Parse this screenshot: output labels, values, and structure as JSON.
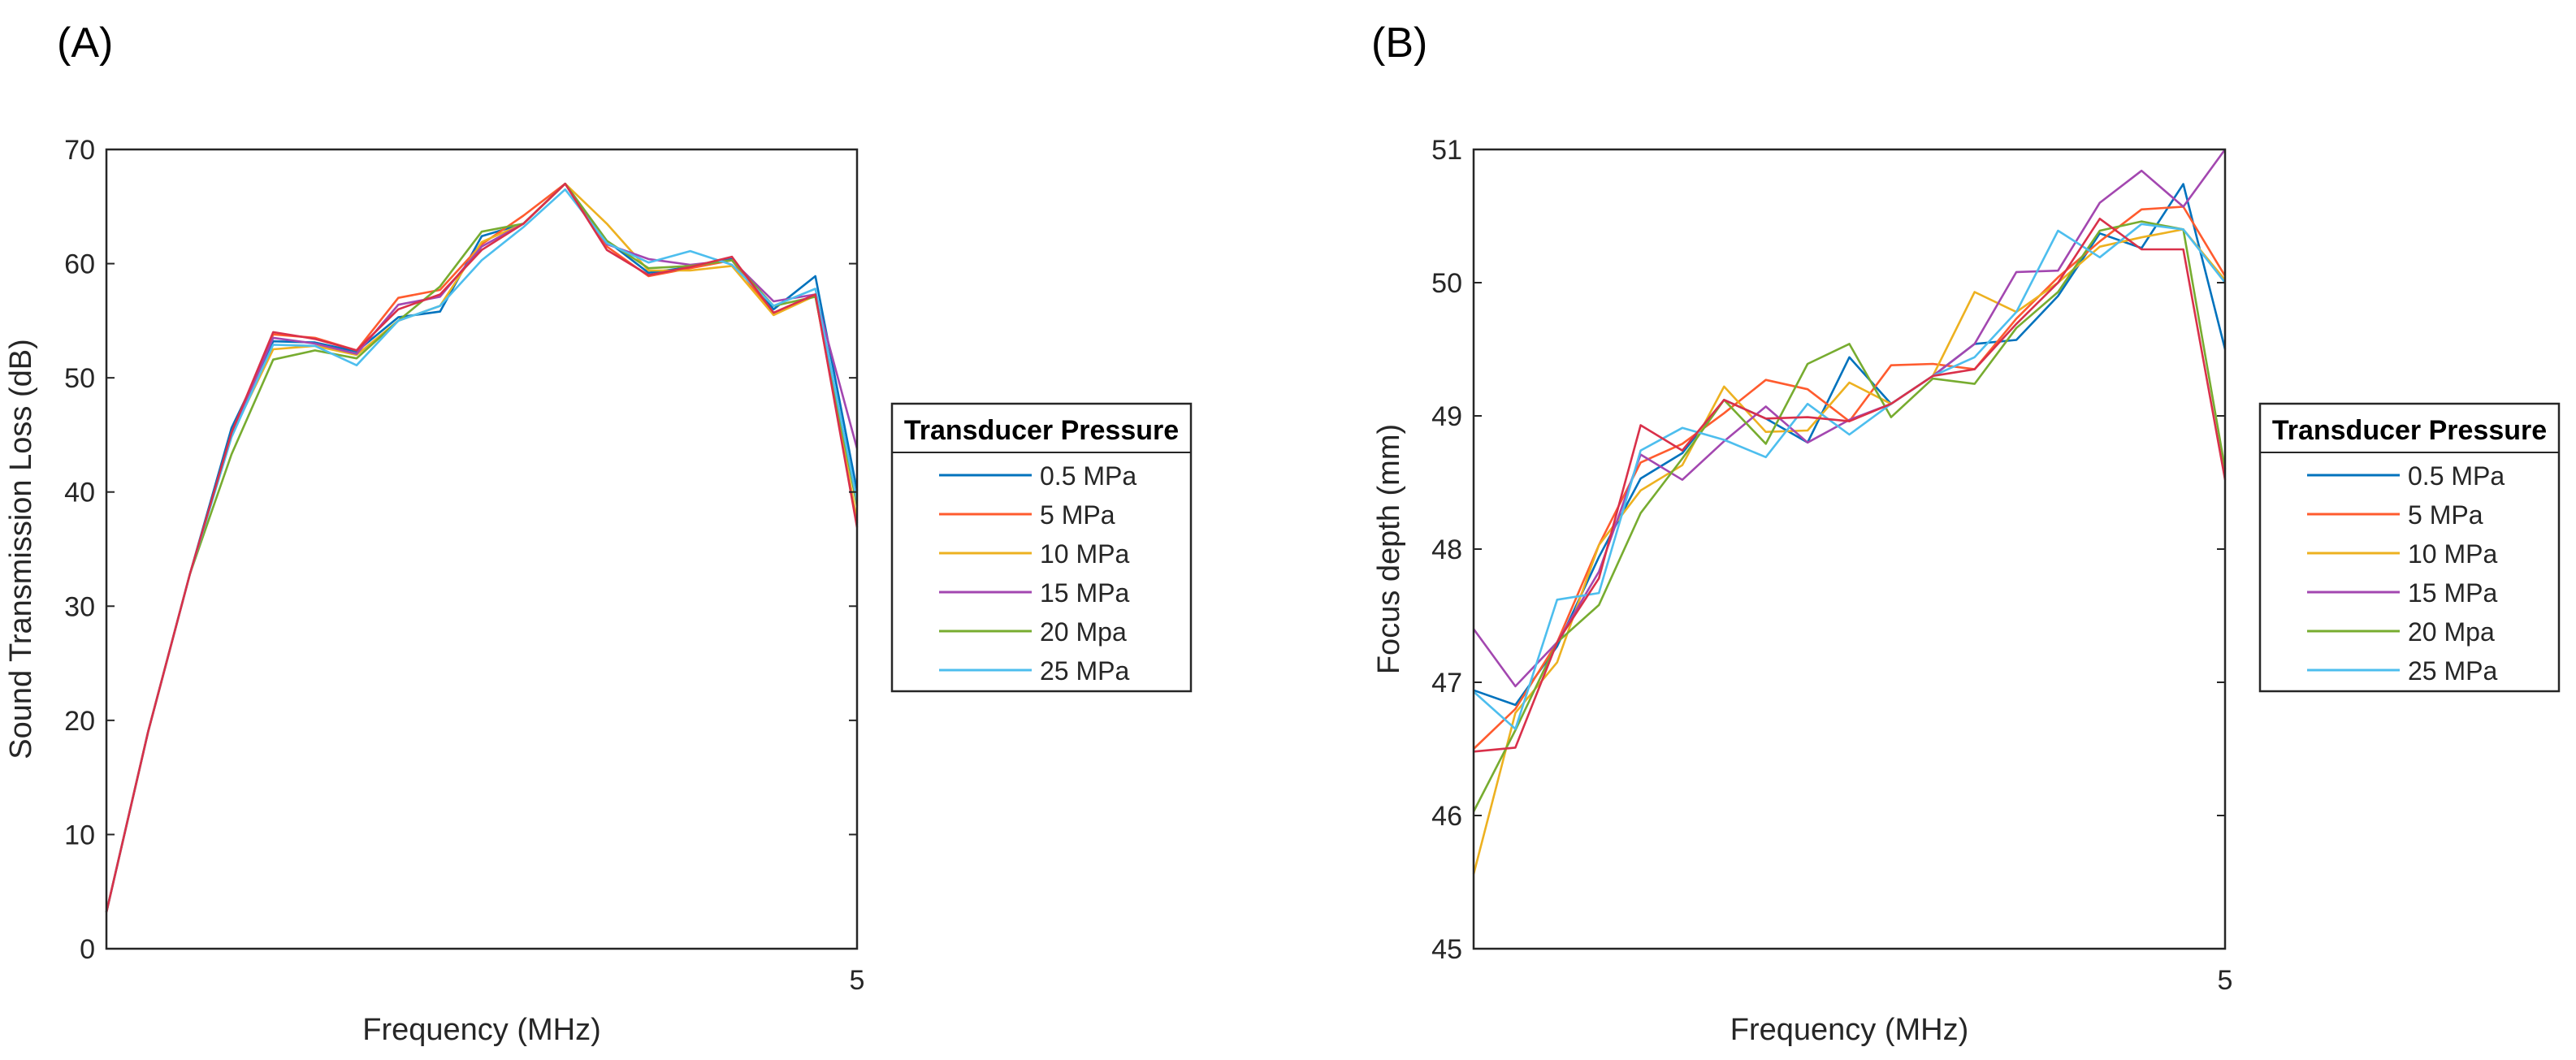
{
  "chart_data": [
    {
      "type": "line",
      "panel_label": "(A)",
      "title": "",
      "xlabel": "Frequency (MHz)",
      "ylabel": "Sound Transmission Loss (dB)",
      "xlim": [
        0.5,
        5
      ],
      "ylim": [
        0,
        70
      ],
      "xticks": [
        5
      ],
      "xtick_labels": [
        "5"
      ],
      "yticks": [
        0,
        10,
        20,
        30,
        40,
        50,
        60,
        70
      ],
      "ytick_labels": [
        "0",
        "10",
        "20",
        "30",
        "40",
        "50",
        "60",
        "70"
      ],
      "grid": false,
      "legend": {
        "title": "Transducer Pressure",
        "placement": "outside-right"
      },
      "x": [
        0.5,
        0.75,
        1,
        1.25,
        1.5,
        1.75,
        2,
        2.25,
        2.5,
        2.75,
        3,
        3.25,
        3.5,
        3.75,
        4,
        4.25,
        4.5,
        4.75,
        5
      ],
      "series": [
        {
          "name": "0.5 MPa",
          "color": "#0072BD",
          "values": [
            3.2,
            19,
            32.8,
            45.6,
            53.2,
            53.1,
            52.3,
            55.3,
            55.8,
            62.4,
            63.5,
            67,
            62,
            59.2,
            59.7,
            60.4,
            56,
            58.9,
            40.1
          ]
        },
        {
          "name": "5 MPa",
          "color": "#FF5B2E",
          "values": [
            3.2,
            19,
            32.8,
            45,
            53.8,
            53.5,
            52.4,
            57,
            57.7,
            61.7,
            64.2,
            67,
            61.5,
            58.9,
            59.6,
            60.3,
            55.5,
            57.3,
            37.3
          ]
        },
        {
          "name": "10 MPa",
          "color": "#EDB120",
          "values": [
            3.2,
            19,
            32.8,
            45,
            52.5,
            52.8,
            52,
            55,
            56.3,
            61.9,
            63.5,
            67,
            63.5,
            59.4,
            59.4,
            59.8,
            55.5,
            57.2,
            37.5
          ]
        },
        {
          "name": "15 MPa",
          "color": "#A347B0",
          "values": [
            3.2,
            19,
            32.8,
            45,
            53.5,
            53,
            52.1,
            56.4,
            57.1,
            61.5,
            63.5,
            67,
            61.7,
            60.4,
            59.9,
            60.3,
            56.7,
            57.3,
            43.8
          ]
        },
        {
          "name": "20 Mpa",
          "color": "#77AC30",
          "values": [
            3.2,
            19,
            32.8,
            43.3,
            51.6,
            52.4,
            51.7,
            55,
            58,
            62.8,
            63.5,
            67,
            62,
            59.6,
            59.8,
            60.3,
            56.3,
            57.1,
            38.8
          ]
        },
        {
          "name": "25 MPa",
          "color": "#4DBEEE",
          "values": [
            3.2,
            19,
            32.8,
            44.8,
            52.9,
            52.8,
            51.1,
            55,
            56.3,
            60.3,
            63.2,
            66.5,
            61.8,
            60.1,
            61.1,
            59.9,
            56.3,
            57.8,
            39.2
          ]
        },
        {
          "name": "",
          "color": "#D9304A",
          "values": [
            3.2,
            19,
            32.8,
            45.2,
            54,
            53.4,
            52.4,
            56,
            57.3,
            61.2,
            63.5,
            67,
            61.2,
            59,
            59.7,
            60.6,
            55.7,
            57.3,
            36.9
          ]
        }
      ]
    },
    {
      "type": "line",
      "panel_label": "(B)",
      "title": "",
      "xlabel": "Frequency (MHz)",
      "ylabel": "Focus depth (mm)",
      "xlim": [
        0.5,
        5
      ],
      "ylim": [
        45,
        51
      ],
      "xticks": [
        5
      ],
      "xtick_labels": [
        "5"
      ],
      "yticks": [
        45,
        46,
        47,
        48,
        49,
        50,
        51
      ],
      "ytick_labels": [
        "45",
        "46",
        "47",
        "48",
        "49",
        "50",
        "51"
      ],
      "grid": false,
      "legend": {
        "title": "Transducer Pressure",
        "placement": "outside-right"
      },
      "x": [
        0.5,
        0.75,
        1,
        1.25,
        1.5,
        1.75,
        2,
        2.25,
        2.5,
        2.75,
        3,
        3.25,
        3.5,
        3.75,
        4,
        4.25,
        4.5,
        4.75,
        5
      ],
      "series": [
        {
          "name": "0.5 MPa",
          "color": "#0072BD",
          "values": [
            46.94,
            46.83,
            47.27,
            47.94,
            48.53,
            48.72,
            49.12,
            48.98,
            48.8,
            49.44,
            49.09,
            49.3,
            49.54,
            49.57,
            49.9,
            50.37,
            50.26,
            50.74,
            49.5
          ]
        },
        {
          "name": "5 MPa",
          "color": "#FF5B2E",
          "values": [
            46.5,
            46.8,
            47.3,
            48.03,
            48.65,
            48.79,
            49.02,
            49.27,
            49.2,
            48.96,
            49.38,
            49.39,
            49.35,
            49.73,
            50.04,
            50.31,
            50.55,
            50.57,
            50.05
          ]
        },
        {
          "name": "10 MPa",
          "color": "#EDB120",
          "values": [
            45.56,
            46.77,
            47.15,
            48.03,
            48.44,
            48.63,
            49.22,
            48.88,
            48.89,
            49.25,
            49.09,
            49.3,
            49.93,
            49.78,
            50.0,
            50.27,
            50.34,
            50.4,
            50.02
          ]
        },
        {
          "name": "15 MPa",
          "color": "#A347B0",
          "values": [
            47.4,
            46.97,
            47.3,
            47.83,
            48.71,
            48.52,
            48.81,
            49.07,
            48.8,
            48.97,
            49.09,
            49.3,
            49.54,
            50.08,
            50.09,
            50.6,
            50.84,
            50.57,
            51.0
          ]
        },
        {
          "name": "20 Mpa",
          "color": "#77AC30",
          "values": [
            46.03,
            46.64,
            47.3,
            47.58,
            48.27,
            48.68,
            49.12,
            48.79,
            49.39,
            49.54,
            48.99,
            49.28,
            49.24,
            49.66,
            49.93,
            50.39,
            50.46,
            50.4,
            48.6
          ]
        },
        {
          "name": "25 MPa",
          "color": "#4DBEEE",
          "values": [
            46.93,
            46.65,
            47.62,
            47.67,
            48.74,
            48.91,
            48.82,
            48.69,
            49.09,
            48.86,
            49.09,
            49.3,
            49.44,
            49.78,
            50.39,
            50.19,
            50.44,
            50.4,
            50.0
          ]
        },
        {
          "name": "",
          "color": "#D9304A",
          "values": [
            46.48,
            46.51,
            47.3,
            47.78,
            48.93,
            48.74,
            49.12,
            48.98,
            48.99,
            48.96,
            49.09,
            49.3,
            49.35,
            49.69,
            50.0,
            50.48,
            50.25,
            50.25,
            48.52
          ]
        }
      ]
    }
  ]
}
